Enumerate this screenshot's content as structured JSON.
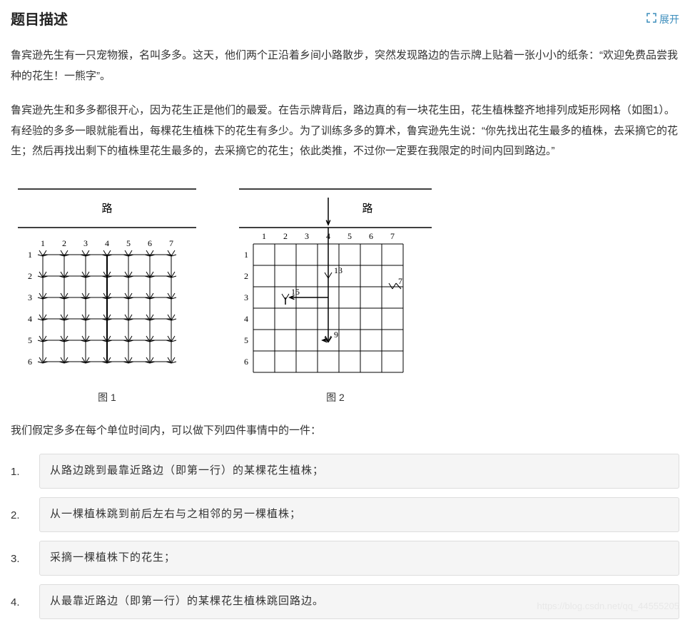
{
  "header": {
    "title": "题目描述",
    "expand_label": "展开"
  },
  "paragraphs": {
    "p1": "鲁宾逊先生有一只宠物猴，名叫多多。这天，他们两个正沿着乡间小路散步，突然发现路边的告示牌上贴着一张小小的纸条：“欢迎免费品尝我种的花生！一熊字”。",
    "p2": "鲁宾逊先生和多多都很开心，因为花生正是他们的最爱。在告示牌背后，路边真的有一块花生田，花生植株整齐地排列成矩形网格（如图1）。有经验的多多一眼就能看出，每棵花生植株下的花生有多少。为了训练多多的算术，鲁宾逊先生说：“你先找出花生最多的植株，去采摘它的花生；然后再找出剩下的植株里花生最多的，去采摘它的花生；依此类推，不过你一定要在我限定的时间内回到路边。”",
    "list_intro": "我们假定多多在每个单位时间内，可以做下列四件事情中的一件："
  },
  "figure1": {
    "road_label": "路",
    "caption": "图 1",
    "cols": 7,
    "rows": 6,
    "col_labels": [
      "1",
      "2",
      "3",
      "4",
      "5",
      "6",
      "7"
    ],
    "row_labels": [
      "1",
      "2",
      "3",
      "4",
      "5",
      "6"
    ],
    "line_color": "#000000",
    "background": "#ffffff"
  },
  "figure2": {
    "road_label": "路",
    "caption": "图 2",
    "cols": 7,
    "rows": 6,
    "col_labels": [
      "1",
      "2",
      "3",
      "4",
      "5",
      "6",
      "7"
    ],
    "row_labels": [
      "1",
      "2",
      "3",
      "4",
      "5",
      "6"
    ],
    "annotations": [
      {
        "text": "13",
        "col": 4,
        "row": 2
      },
      {
        "text": "7",
        "col": 7,
        "row": 2.5
      },
      {
        "text": "15",
        "col": 2,
        "row": 3
      },
      {
        "text": "9",
        "col": 4,
        "row": 5
      }
    ],
    "line_color": "#000000",
    "background": "#ffffff"
  },
  "list": {
    "items": [
      "从路边跳到最靠近路边（即第一行）的某棵花生植株；",
      "从一棵植株跳到前后左右与之相邻的另一棵植株；",
      "采摘一棵植株下的花生；",
      "从最靠近路边（即第一行）的某棵花生植株跳回路边。"
    ]
  },
  "watermark": "https://blog.csdn.net/qq_44555205"
}
